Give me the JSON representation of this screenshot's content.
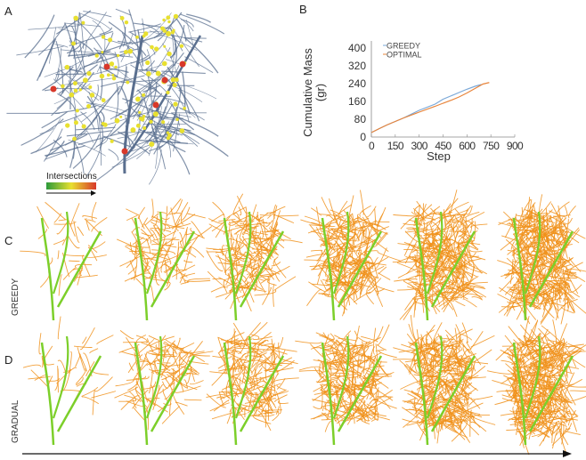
{
  "panels": {
    "a": "A",
    "b": "B",
    "c": "C",
    "d": "D"
  },
  "panel_a": {
    "colorbar_label": "Intersections",
    "colors": {
      "branch": "#5a6f8f",
      "node_low": "#e8e030",
      "node_high": "#d8382a"
    }
  },
  "rows": {
    "greedy_label": "GREEDY",
    "gradual_label": "GRADUAL",
    "stem_color": "#7ccf2a",
    "fiber_color": "#f0901a"
  },
  "chart_data": {
    "type": "line",
    "title": "",
    "xlabel": "Step",
    "ylabel": "Cumulative Mass\n(gr)",
    "ylabel_lines": [
      "Cumulative Mass",
      "(gr)"
    ],
    "xlim": [
      0,
      900
    ],
    "ylim": [
      0,
      400
    ],
    "xticks": [
      "0",
      "150",
      "300",
      "450",
      "600",
      "750",
      "900"
    ],
    "yticks": [
      "0",
      "80",
      "160",
      "240",
      "320",
      "400"
    ],
    "legend_position": "top-left",
    "series": [
      {
        "name": "GREEDY",
        "color": "#7aa8d8",
        "x": [
          0,
          50,
          100,
          200,
          300,
          400,
          450,
          500,
          550,
          600,
          650,
          690
        ],
        "y": [
          20,
          38,
          55,
          85,
          120,
          148,
          170,
          185,
          200,
          215,
          228,
          236
        ]
      },
      {
        "name": "OPTIMAL",
        "color": "#e8843a",
        "x": [
          0,
          50,
          100,
          200,
          300,
          400,
          450,
          500,
          550,
          600,
          650,
          700,
          740
        ],
        "y": [
          20,
          38,
          55,
          85,
          112,
          138,
          152,
          165,
          180,
          198,
          218,
          238,
          245
        ]
      }
    ]
  }
}
